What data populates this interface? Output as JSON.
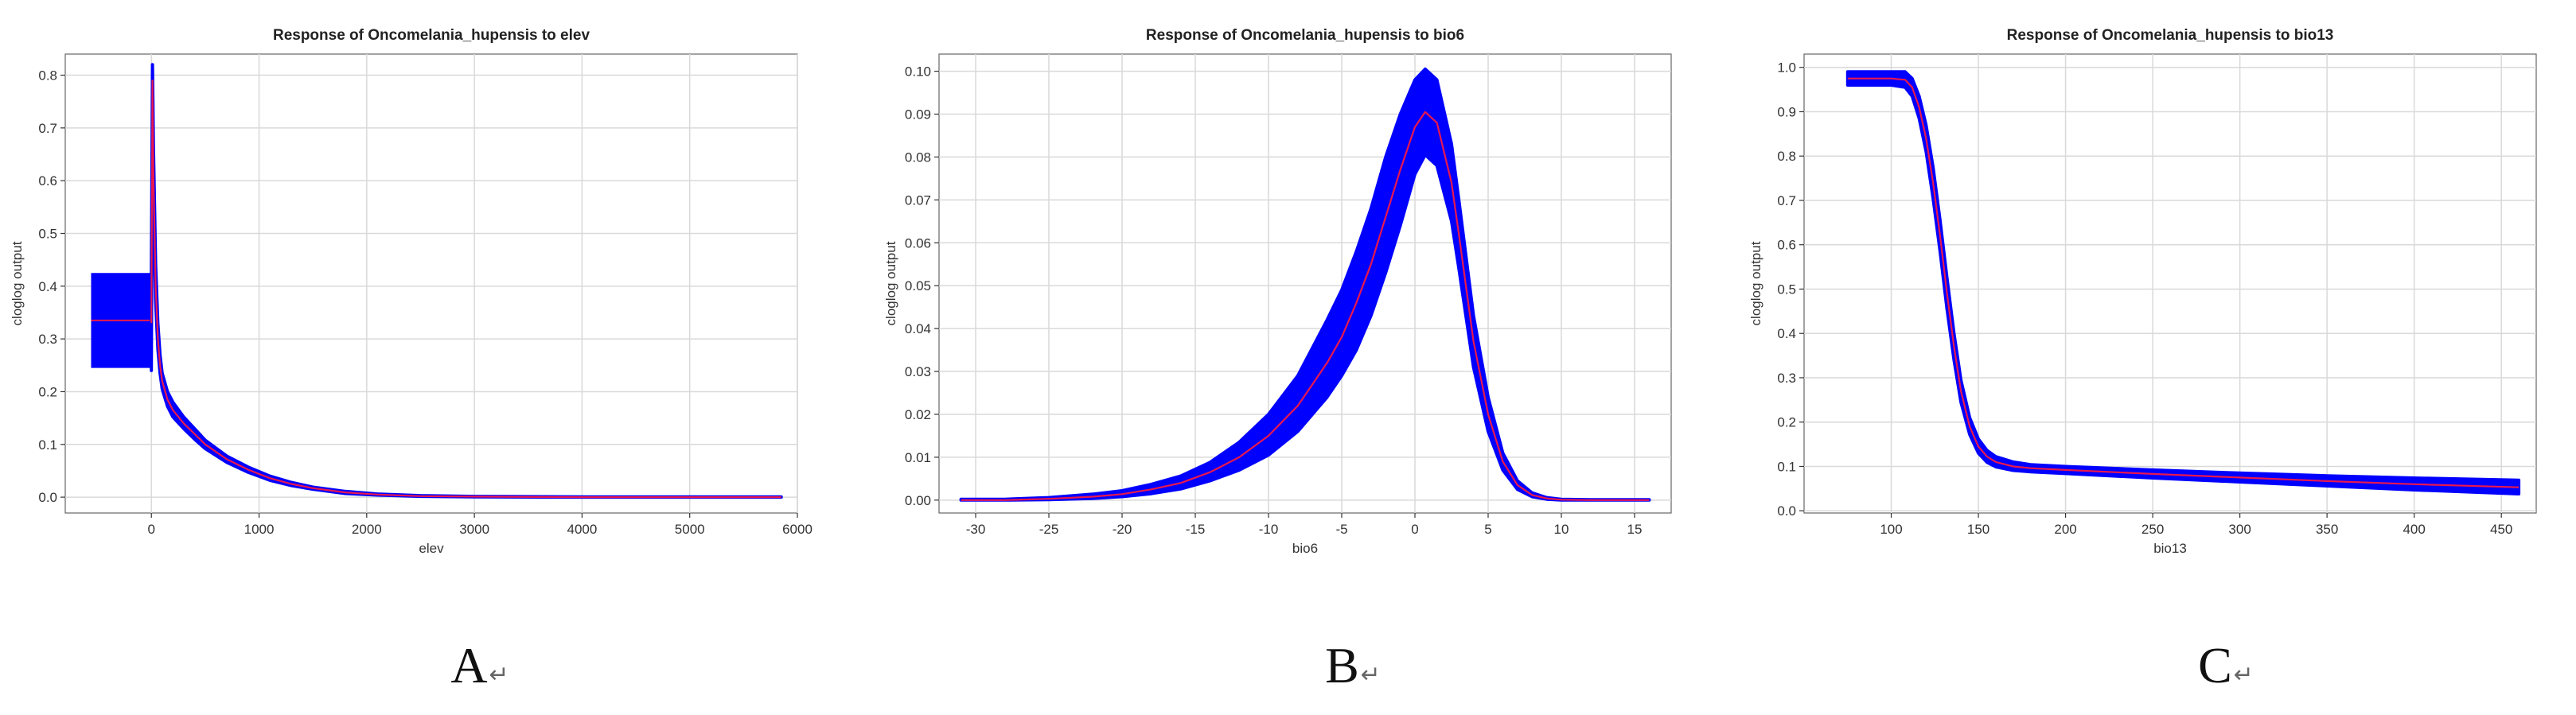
{
  "figure": {
    "panel_labels": [
      "A",
      "B",
      "C"
    ],
    "return_glyph": "↵"
  },
  "chart_data": [
    {
      "type": "line",
      "title": "Response of Oncomelania_hupensis to elev",
      "xlabel": "elev",
      "ylabel": "cloglog output",
      "xlim": [
        -800,
        6000
      ],
      "ylim": [
        -0.03,
        0.84
      ],
      "xticks": [
        0,
        1000,
        2000,
        3000,
        4000,
        5000,
        6000
      ],
      "yticks": [
        0.0,
        0.1,
        0.2,
        0.3,
        0.4,
        0.5,
        0.6,
        0.7,
        0.8
      ],
      "xtick_labels": [
        "0",
        "1000",
        "2000",
        "3000",
        "4000",
        "5000",
        "6000"
      ],
      "ytick_labels": [
        "0.0",
        "0.1",
        "0.2",
        "0.3",
        "0.4",
        "0.5",
        "0.6",
        "0.7",
        "0.8"
      ],
      "grid": true,
      "categorical_box": {
        "x_range": [
          -560,
          0
        ],
        "y_range": [
          0.245,
          0.425
        ],
        "mean": 0.335
      },
      "mean": {
        "x": [
          0,
          10,
          20,
          40,
          60,
          80,
          100,
          150,
          200,
          300,
          400,
          500,
          700,
          900,
          1100,
          1300,
          1500,
          1800,
          2100,
          2500,
          3000,
          4000,
          5000,
          5850
        ],
        "y": [
          0.33,
          0.79,
          0.6,
          0.4,
          0.3,
          0.25,
          0.22,
          0.185,
          0.165,
          0.14,
          0.12,
          0.1,
          0.072,
          0.052,
          0.036,
          0.025,
          0.017,
          0.009,
          0.005,
          0.002,
          0.001,
          0.0,
          0.0,
          0.0
        ]
      },
      "band": {
        "upper": [
          0.43,
          0.82,
          0.66,
          0.44,
          0.33,
          0.27,
          0.235,
          0.2,
          0.18,
          0.152,
          0.13,
          0.108,
          0.078,
          0.057,
          0.04,
          0.028,
          0.019,
          0.011,
          0.006,
          0.003,
          0.0015,
          0.0005,
          0.0005,
          0.0005
        ],
        "lower": [
          0.24,
          0.75,
          0.55,
          0.37,
          0.28,
          0.235,
          0.205,
          0.172,
          0.152,
          0.13,
          0.11,
          0.092,
          0.066,
          0.047,
          0.032,
          0.022,
          0.015,
          0.007,
          0.004,
          0.0015,
          0.0005,
          0.0,
          0.0,
          0.0
        ]
      },
      "colors": {
        "mean": "#e8174f",
        "band": "#0000ff",
        "grid": "#d9d9d9",
        "axis": "#333333"
      }
    },
    {
      "type": "line",
      "title": "Response of Oncomelania_hupensis to bio6",
      "xlabel": "bio6",
      "ylabel": "cloglog output",
      "xlim": [
        -32.5,
        17.5
      ],
      "ylim": [
        -0.003,
        0.104
      ],
      "xticks": [
        -30,
        -25,
        -20,
        -15,
        -10,
        -5,
        0,
        5,
        10,
        15
      ],
      "yticks": [
        0.0,
        0.01,
        0.02,
        0.03,
        0.04,
        0.05,
        0.06,
        0.07,
        0.08,
        0.09,
        0.1
      ],
      "xtick_labels": [
        "-30",
        "-25",
        "-20",
        "-15",
        "-10",
        "-5",
        "0",
        "5",
        "10",
        "15"
      ],
      "ytick_labels": [
        "0.00",
        "0.01",
        "0.02",
        "0.03",
        "0.04",
        "0.05",
        "0.06",
        "0.07",
        "0.08",
        "0.09",
        "0.10"
      ],
      "grid": true,
      "mean": {
        "x": [
          -31,
          -28,
          -25,
          -22,
          -20,
          -18,
          -16,
          -14,
          -12,
          -10,
          -8,
          -6,
          -5,
          -4,
          -3,
          -2,
          -1,
          0,
          0.7,
          1.5,
          2.5,
          3,
          4,
          5,
          6,
          7,
          8,
          9,
          10,
          12,
          14,
          16
        ],
        "y": [
          0.0,
          0.0,
          0.0003,
          0.0008,
          0.0014,
          0.0025,
          0.004,
          0.0065,
          0.01,
          0.015,
          0.022,
          0.032,
          0.038,
          0.046,
          0.055,
          0.066,
          0.077,
          0.087,
          0.0905,
          0.088,
          0.074,
          0.062,
          0.037,
          0.02,
          0.009,
          0.0035,
          0.0012,
          0.0004,
          0.0001,
          0.0,
          0.0,
          0.0
        ]
      },
      "band": {
        "upper": [
          0.0002,
          0.0002,
          0.0006,
          0.0014,
          0.0022,
          0.0037,
          0.0056,
          0.0088,
          0.0135,
          0.02,
          0.029,
          0.042,
          0.049,
          0.058,
          0.068,
          0.08,
          0.09,
          0.098,
          0.1005,
          0.098,
          0.083,
          0.07,
          0.043,
          0.024,
          0.011,
          0.0045,
          0.0017,
          0.0006,
          0.0002,
          0.0001,
          0.0001,
          0.0001
        ],
        "lower": [
          0.0,
          0.0,
          0.0001,
          0.0004,
          0.0008,
          0.0015,
          0.0026,
          0.0045,
          0.007,
          0.0105,
          0.016,
          0.024,
          0.029,
          0.035,
          0.043,
          0.053,
          0.064,
          0.076,
          0.0805,
          0.078,
          0.065,
          0.054,
          0.031,
          0.016,
          0.007,
          0.0025,
          0.0008,
          0.0002,
          0.0,
          0.0,
          0.0,
          0.0
        ]
      },
      "colors": {
        "mean": "#e8174f",
        "band": "#0000ff",
        "grid": "#d9d9d9",
        "axis": "#333333"
      }
    },
    {
      "type": "line",
      "title": "Response of Oncomelania_hupensis to bio13",
      "xlabel": "bio13",
      "ylabel": "cloglog output",
      "xlim": [
        50,
        470
      ],
      "ylim": [
        -0.005,
        1.03
      ],
      "xticks": [
        100,
        150,
        200,
        250,
        300,
        350,
        400,
        450
      ],
      "yticks": [
        0.0,
        0.1,
        0.2,
        0.3,
        0.4,
        0.5,
        0.6,
        0.7,
        0.8,
        0.9,
        1.0
      ],
      "xtick_labels": [
        "100",
        "150",
        "200",
        "250",
        "300",
        "350",
        "400",
        "450"
      ],
      "ytick_labels": [
        "0.0",
        "0.1",
        "0.2",
        "0.3",
        "0.4",
        "0.5",
        "0.6",
        "0.7",
        "0.8",
        "0.9",
        "1.0"
      ],
      "grid": true,
      "mean": {
        "x": [
          75,
          90,
          100,
          108,
          112,
          116,
          120,
          124,
          128,
          132,
          136,
          140,
          145,
          150,
          155,
          160,
          170,
          180,
          200,
          250,
          300,
          350,
          400,
          460
        ],
        "y": [
          0.975,
          0.975,
          0.975,
          0.972,
          0.955,
          0.91,
          0.84,
          0.74,
          0.62,
          0.49,
          0.37,
          0.27,
          0.19,
          0.145,
          0.122,
          0.11,
          0.1,
          0.096,
          0.092,
          0.083,
          0.075,
          0.067,
          0.06,
          0.053
        ]
      },
      "band": {
        "upper": [
          0.99,
          0.99,
          0.99,
          0.99,
          0.975,
          0.935,
          0.87,
          0.775,
          0.655,
          0.525,
          0.4,
          0.295,
          0.21,
          0.162,
          0.136,
          0.122,
          0.11,
          0.104,
          0.1,
          0.092,
          0.085,
          0.079,
          0.074,
          0.069
        ],
        "lower": [
          0.96,
          0.96,
          0.96,
          0.955,
          0.935,
          0.885,
          0.81,
          0.705,
          0.585,
          0.455,
          0.34,
          0.245,
          0.172,
          0.13,
          0.109,
          0.099,
          0.091,
          0.088,
          0.084,
          0.074,
          0.065,
          0.056,
          0.047,
          0.038
        ]
      },
      "colors": {
        "mean": "#e8174f",
        "band": "#0000ff",
        "grid": "#d9d9d9",
        "axis": "#333333"
      }
    }
  ]
}
